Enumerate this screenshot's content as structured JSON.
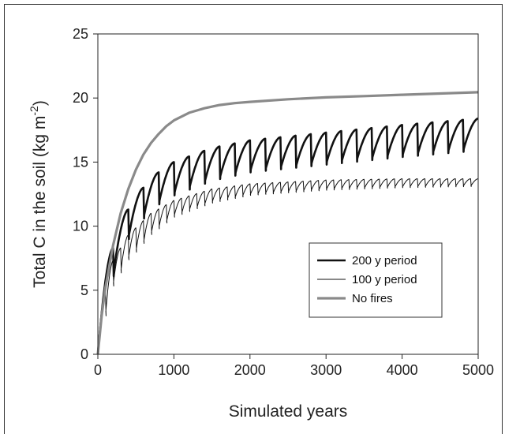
{
  "chart_data": {
    "type": "line",
    "title": "",
    "xlabel": "Simulated years",
    "ylabel": "Total C in the soil  (kg m",
    "ylabel_sup": "-2",
    "ylabel_close": ")",
    "xlim": [
      0,
      5000
    ],
    "ylim": [
      0,
      25
    ],
    "x_ticks": [
      "0",
      "1000",
      "2000",
      "3000",
      "4000",
      "5000"
    ],
    "y_ticks": [
      "0",
      "5",
      "10",
      "15",
      "20",
      "25"
    ],
    "grid": false,
    "legend_position": "lower-right",
    "series": [
      {
        "name": "200 y period",
        "color": "#111111",
        "style": "thick",
        "period": 200,
        "trend": [
          [
            0,
            0
          ],
          [
            200,
            8.3
          ],
          [
            400,
            11.3
          ],
          [
            600,
            13.0
          ],
          [
            800,
            14.2
          ],
          [
            1000,
            15.0
          ],
          [
            1500,
            16.1
          ],
          [
            2000,
            16.7
          ],
          [
            3000,
            17.3
          ],
          [
            4000,
            17.9
          ],
          [
            5000,
            18.4
          ]
        ],
        "drop": [
          [
            0,
            0
          ],
          [
            200,
            2.2
          ],
          [
            1000,
            2.6
          ],
          [
            2000,
            2.5
          ],
          [
            5000,
            2.5
          ]
        ]
      },
      {
        "name": "100 y period",
        "color": "#111111",
        "style": "thin",
        "period": 100,
        "trend": [
          [
            0,
            0
          ],
          [
            100,
            5.0
          ],
          [
            200,
            7.3
          ],
          [
            400,
            9.3
          ],
          [
            700,
            11.0
          ],
          [
            1000,
            12.0
          ],
          [
            1500,
            12.9
          ],
          [
            2000,
            13.3
          ],
          [
            3000,
            13.6
          ],
          [
            4000,
            13.7
          ],
          [
            5000,
            13.7
          ]
        ],
        "drop": [
          [
            0,
            0
          ],
          [
            100,
            2.0
          ],
          [
            500,
            1.9
          ],
          [
            1000,
            1.3
          ],
          [
            2000,
            0.9
          ],
          [
            5000,
            0.6
          ]
        ]
      },
      {
        "name": "No fires",
        "color": "#8a8a8a",
        "style": "smooth",
        "points": [
          [
            0,
            0
          ],
          [
            50,
            3.0
          ],
          [
            100,
            5.2
          ],
          [
            200,
            8.5
          ],
          [
            300,
            11.0
          ],
          [
            400,
            12.9
          ],
          [
            500,
            14.4
          ],
          [
            600,
            15.6
          ],
          [
            700,
            16.5
          ],
          [
            800,
            17.2
          ],
          [
            900,
            17.8
          ],
          [
            1000,
            18.25
          ],
          [
            1200,
            18.85
          ],
          [
            1400,
            19.2
          ],
          [
            1600,
            19.45
          ],
          [
            1800,
            19.6
          ],
          [
            2000,
            19.7
          ],
          [
            2500,
            19.9
          ],
          [
            3000,
            20.05
          ],
          [
            3500,
            20.15
          ],
          [
            4000,
            20.25
          ],
          [
            4500,
            20.35
          ],
          [
            5000,
            20.45
          ]
        ]
      }
    ]
  }
}
